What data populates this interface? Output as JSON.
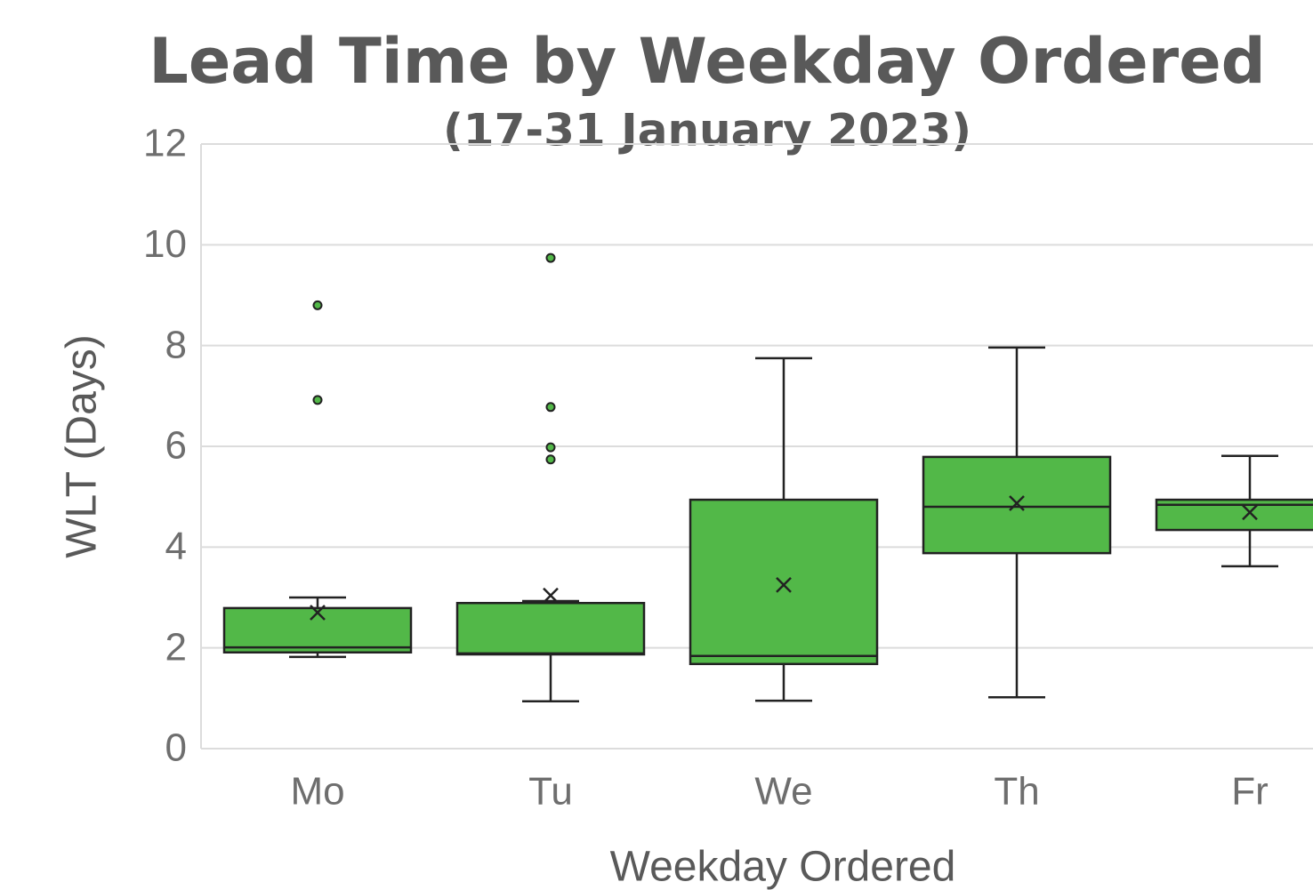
{
  "chart_data": {
    "type": "box",
    "title": "Lead Time by Weekday Ordered",
    "subtitle": "(17-31 January 2023)",
    "x_label": "Weekday Ordered",
    "y_label": "WLT (Days)",
    "categories": [
      "Mo",
      "Tu",
      "We",
      "Th",
      "Fr"
    ],
    "color": "#52b848",
    "boxes": [
      {
        "min": 1.82,
        "q1": 1.91,
        "median": 2.01,
        "q3": 2.79,
        "max": 3.0,
        "mean": 2.7,
        "outliers": [
          8.8,
          6.92
        ]
      },
      {
        "min": 0.94,
        "q1": 1.87,
        "median": 1.89,
        "q3": 2.89,
        "max": 2.93,
        "mean": 3.04,
        "outliers": [
          9.74,
          6.78,
          5.98,
          5.74
        ]
      },
      {
        "min": 0.95,
        "q1": 1.68,
        "median": 1.84,
        "q3": 4.94,
        "max": 7.75,
        "mean": 3.25,
        "outliers": []
      },
      {
        "min": 1.02,
        "q1": 3.88,
        "median": 4.8,
        "q3": 5.79,
        "max": 7.96,
        "mean": 4.87,
        "outliers": []
      },
      {
        "min": 3.62,
        "q1": 4.34,
        "median": 4.84,
        "q3": 4.94,
        "max": 5.81,
        "mean": 4.69,
        "outliers": []
      }
    ],
    "ylim": [
      0,
      12
    ],
    "yticks": [
      0,
      2,
      4,
      6,
      8,
      10,
      12
    ],
    "grid": true
  }
}
